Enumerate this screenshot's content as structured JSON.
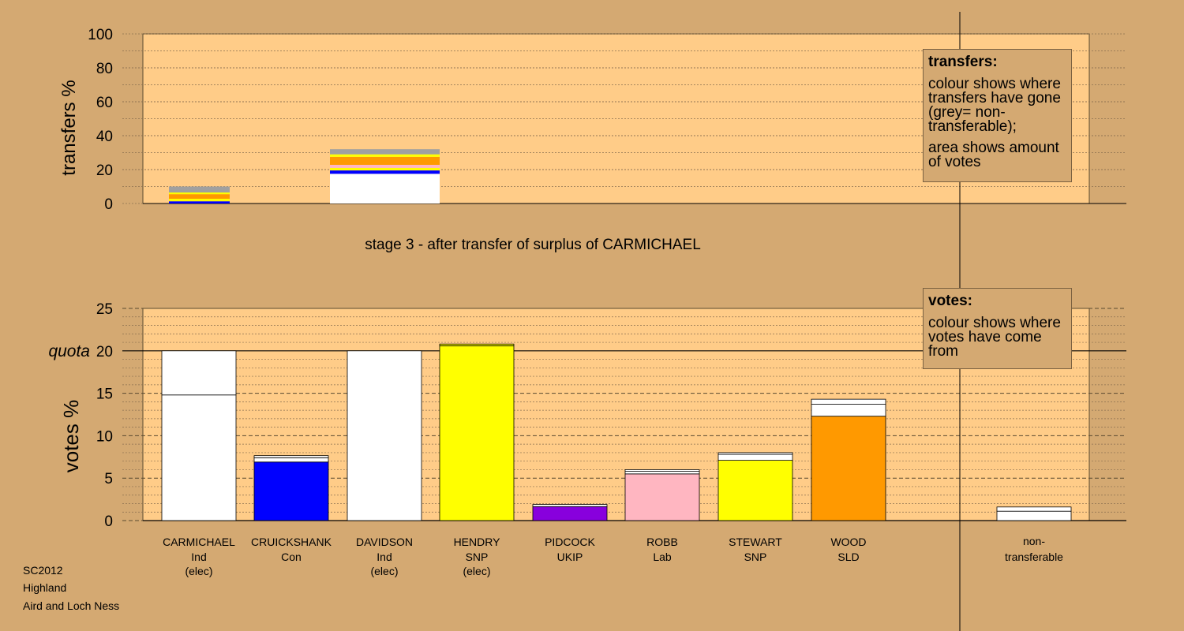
{
  "chart_data": [
    {
      "type": "bar",
      "title": "stage 3 - after transfer of surplus of CARMICHAEL",
      "ylabel": "transfers %",
      "ylim": [
        0,
        100
      ],
      "yticks": [
        0,
        20,
        40,
        60,
        80,
        100
      ],
      "stacked": true,
      "legend_placement": "top-right",
      "legend": {
        "title": "transfers:",
        "line1": "colour shows where transfers have gone (grey= non-transferable);",
        "line2": "area shows amount of votes"
      },
      "bars": [
        {
          "position": "between CARMICHAEL and CRUICKSHANK",
          "segments": [
            {
              "value": 1.3,
              "color": "#0000ff"
            },
            {
              "value": 1.5,
              "color": "#ffff00"
            },
            {
              "value": 2.7,
              "color": "#ff9900"
            },
            {
              "value": 1.0,
              "color": "#ffff00"
            },
            {
              "value": 3.5,
              "color": "#a0a0a0"
            }
          ]
        },
        {
          "position": "CRUICKSHANK",
          "segments": [
            {
              "value": 17.5,
              "color": "#ffffff"
            },
            {
              "value": 2.0,
              "color": "#0000ff"
            },
            {
              "value": 1.5,
              "color": "#ffff00"
            },
            {
              "value": 1.8,
              "color": "#ffb6c1"
            },
            {
              "value": 4.7,
              "color": "#ff9900"
            },
            {
              "value": 1.5,
              "color": "#ffff00"
            },
            {
              "value": 3.0,
              "color": "#a0a0a0"
            }
          ]
        }
      ]
    },
    {
      "type": "bar",
      "ylabel": "votes %",
      "ylim": [
        0,
        25
      ],
      "yticks": [
        0,
        5,
        10,
        15,
        20,
        25
      ],
      "quota": 20,
      "quota_label": "quota",
      "stacked": true,
      "legend_placement": "top-right",
      "legend": {
        "title": "votes:",
        "body": "colour shows where votes have come from"
      },
      "categories": [
        {
          "name": "CARMICHAEL",
          "party": "Ind",
          "status": "(elec)",
          "color": "#ffffff",
          "segments": [
            {
              "value": 14.8,
              "color": "#ffffff"
            },
            {
              "value": 5.2,
              "color": "#ffffff"
            }
          ]
        },
        {
          "name": "CRUICKSHANK",
          "party": "Con",
          "status": "",
          "color": "#0000ff",
          "segments": [
            {
              "value": 6.9,
              "color": "#0000ff"
            },
            {
              "value": 0.5,
              "color": "#ffffff"
            },
            {
              "value": 0.25,
              "color": "#ffffff"
            }
          ]
        },
        {
          "name": "DAVIDSON",
          "party": "Ind",
          "status": "(elec)",
          "color": "#ffffff",
          "segments": [
            {
              "value": 20.0,
              "color": "#ffffff"
            }
          ]
        },
        {
          "name": "HENDRY",
          "party": "SNP",
          "status": "(elec)",
          "color": "#ffff00",
          "segments": [
            {
              "value": 20.6,
              "color": "#ffff00"
            },
            {
              "value": 0.2,
              "color": "#ffff00"
            }
          ]
        },
        {
          "name": "PIDCOCK",
          "party": "UKIP",
          "status": "",
          "color": "#8800dd",
          "segments": [
            {
              "value": 1.65,
              "color": "#8800dd"
            },
            {
              "value": 0.25,
              "color": "#ffffff"
            }
          ]
        },
        {
          "name": "ROBB",
          "party": "Lab",
          "status": "",
          "color": "#ffb6c1",
          "segments": [
            {
              "value": 5.5,
              "color": "#ffb6c1"
            },
            {
              "value": 0.3,
              "color": "#ffffff"
            },
            {
              "value": 0.2,
              "color": "#ffffff"
            }
          ]
        },
        {
          "name": "STEWART",
          "party": "SNP",
          "status": "",
          "color": "#ffff00",
          "segments": [
            {
              "value": 7.1,
              "color": "#ffff00"
            },
            {
              "value": 0.7,
              "color": "#ffffff"
            },
            {
              "value": 0.2,
              "color": "#ffffff"
            }
          ]
        },
        {
          "name": "WOOD",
          "party": "SLD",
          "status": "",
          "color": "#ff9900",
          "segments": [
            {
              "value": 12.3,
              "color": "#ff9900"
            },
            {
              "value": 1.4,
              "color": "#ffffff"
            },
            {
              "value": 0.6,
              "color": "#ffffff"
            }
          ]
        }
      ],
      "non_transferable": {
        "label1": "non-",
        "label2": "transferable",
        "segments": [
          {
            "value": 1.1,
            "color": "#ffffff"
          },
          {
            "value": 0.5,
            "color": "#ffffff"
          }
        ]
      }
    }
  ],
  "footer": {
    "line1": "SC2012",
    "line2": "Highland",
    "line3": "Aird and Loch Ness"
  },
  "colors": {
    "background": "#d4a972",
    "plot_area": "#ffcc88"
  }
}
